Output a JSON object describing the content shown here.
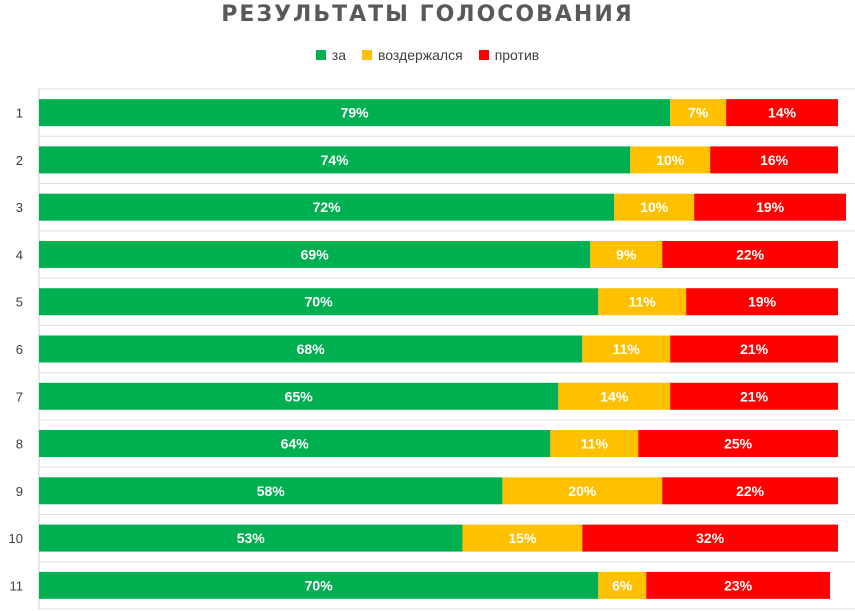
{
  "chart_data": {
    "type": "bar",
    "orientation": "horizontal",
    "stacked": true,
    "title": "РЕЗУЛЬТАТЫ ГОЛОСОВАНИЯ",
    "categories": [
      "1",
      "2",
      "3",
      "4",
      "5",
      "6",
      "7",
      "8",
      "9",
      "10",
      "11"
    ],
    "series": [
      {
        "name": "за",
        "color": "#00B050",
        "values": [
          79,
          74,
          72,
          69,
          70,
          68,
          65,
          64,
          58,
          53,
          70
        ]
      },
      {
        "name": "воздержался",
        "color": "#FFC000",
        "values": [
          7,
          10,
          10,
          9,
          11,
          11,
          14,
          11,
          20,
          15,
          6
        ]
      },
      {
        "name": "против",
        "color": "#FF0000",
        "values": [
          14,
          16,
          19,
          22,
          19,
          21,
          21,
          25,
          22,
          32,
          23
        ]
      }
    ],
    "value_suffix": "%",
    "legend_position": "top",
    "grid": true
  }
}
